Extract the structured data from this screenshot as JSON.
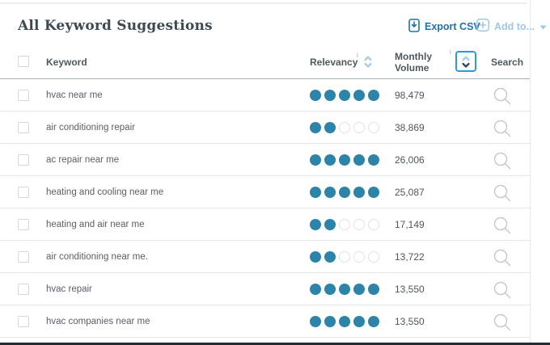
{
  "header": {
    "title": "All Keyword Suggestions",
    "export_csv_label": "Export CSV",
    "add_to_label": "Add to..."
  },
  "table": {
    "columns": {
      "keyword": "Keyword",
      "relevancy": "Relevancy",
      "relevancy_info": "i",
      "monthly_volume": "Monthly Volume",
      "volume_info": "i",
      "search": "Search"
    },
    "relevancy_max": 5,
    "sort": {
      "active_column": "monthly_volume",
      "direction": "desc"
    },
    "rows": [
      {
        "keyword": "hvac near me",
        "relevancy": 5,
        "monthly_volume": "98,479"
      },
      {
        "keyword": "air conditioning repair",
        "relevancy": 2,
        "monthly_volume": "38,869"
      },
      {
        "keyword": "ac repair near me",
        "relevancy": 5,
        "monthly_volume": "26,006"
      },
      {
        "keyword": "heating and cooling near me",
        "relevancy": 5,
        "monthly_volume": "25,087"
      },
      {
        "keyword": "heating and air near me",
        "relevancy": 2,
        "monthly_volume": "17,149"
      },
      {
        "keyword": "air conditioning near me.",
        "relevancy": 2,
        "monthly_volume": "13,722"
      },
      {
        "keyword": "hvac repair",
        "relevancy": 5,
        "monthly_volume": "13,550"
      },
      {
        "keyword": "hvac companies near me",
        "relevancy": 5,
        "monthly_volume": "13,550"
      }
    ]
  },
  "colors": {
    "accent_blue": "#1e73ae",
    "disabled_light_blue": "#9fc8e6",
    "relevancy_dot_teal": "#2c84a9",
    "sort_active_border": "#2d9ad2",
    "sort_active_chevron": "#2b4a5e",
    "title_text": "#3d4a52"
  }
}
